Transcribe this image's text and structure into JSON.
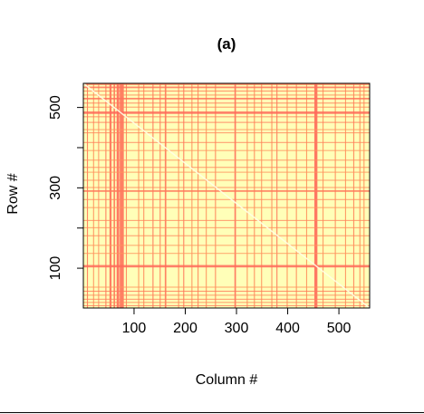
{
  "chart_data": {
    "type": "heatmap",
    "title": "(a)",
    "xlabel": "Column #",
    "ylabel": "Row #",
    "xlim": [
      1,
      560
    ],
    "ylim": [
      1,
      560
    ],
    "x_ticks": [
      100,
      200,
      300,
      400,
      500
    ],
    "y_ticks": [
      100,
      300,
      500
    ],
    "y_minor_ticks": [
      200,
      400
    ],
    "n_rows": 560,
    "n_cols": 560,
    "colors": {
      "low": "#ff6a5a",
      "mid": "#ffb060",
      "high": "#ffffb8",
      "diagonal": "#ffffe6"
    },
    "column_bands": [
      {
        "start": 8,
        "end": 10,
        "level": 0.1
      },
      {
        "start": 20,
        "end": 22,
        "level": 0.3
      },
      {
        "start": 30,
        "end": 31,
        "level": 0.2
      },
      {
        "start": 44,
        "end": 46,
        "level": 0.1
      },
      {
        "start": 52,
        "end": 56,
        "level": 0.05
      },
      {
        "start": 60,
        "end": 63,
        "level": 0.1
      },
      {
        "start": 66,
        "end": 71,
        "level": 0.0
      },
      {
        "start": 72,
        "end": 80,
        "level": 0.05
      },
      {
        "start": 84,
        "end": 86,
        "level": 0.2
      },
      {
        "start": 108,
        "end": 110,
        "level": 0.3
      },
      {
        "start": 118,
        "end": 120,
        "level": 0.25
      },
      {
        "start": 136,
        "end": 138,
        "level": 0.1
      },
      {
        "start": 150,
        "end": 152,
        "level": 0.15
      },
      {
        "start": 160,
        "end": 163,
        "level": 0.1
      },
      {
        "start": 186,
        "end": 188,
        "level": 0.3
      },
      {
        "start": 196,
        "end": 198,
        "level": 0.1
      },
      {
        "start": 212,
        "end": 214,
        "level": 0.3
      },
      {
        "start": 224,
        "end": 226,
        "level": 0.2
      },
      {
        "start": 240,
        "end": 242,
        "level": 0.3
      },
      {
        "start": 258,
        "end": 260,
        "level": 0.2
      },
      {
        "start": 296,
        "end": 299,
        "level": 0.05
      },
      {
        "start": 320,
        "end": 322,
        "level": 0.3
      },
      {
        "start": 334,
        "end": 336,
        "level": 0.25
      },
      {
        "start": 348,
        "end": 350,
        "level": 0.3
      },
      {
        "start": 368,
        "end": 370,
        "level": 0.25
      },
      {
        "start": 378,
        "end": 380,
        "level": 0.1
      },
      {
        "start": 398,
        "end": 400,
        "level": 0.3
      },
      {
        "start": 416,
        "end": 418,
        "level": 0.25
      },
      {
        "start": 436,
        "end": 438,
        "level": 0.3
      },
      {
        "start": 452,
        "end": 458,
        "level": 0.0
      },
      {
        "start": 468,
        "end": 470,
        "level": 0.3
      },
      {
        "start": 492,
        "end": 494,
        "level": 0.25
      },
      {
        "start": 512,
        "end": 514,
        "level": 0.3
      },
      {
        "start": 528,
        "end": 530,
        "level": 0.2
      },
      {
        "start": 540,
        "end": 542,
        "level": 0.25
      },
      {
        "start": 548,
        "end": 550,
        "level": 0.3
      }
    ],
    "row_bands": [
      {
        "start": 6,
        "end": 8,
        "level": 0.1
      },
      {
        "start": 14,
        "end": 16,
        "level": 0.2
      },
      {
        "start": 22,
        "end": 24,
        "level": 0.15
      },
      {
        "start": 32,
        "end": 34,
        "level": 0.2
      },
      {
        "start": 42,
        "end": 44,
        "level": 0.1
      },
      {
        "start": 52,
        "end": 54,
        "level": 0.3
      },
      {
        "start": 102,
        "end": 108,
        "level": 0.0
      },
      {
        "start": 136,
        "end": 138,
        "level": 0.3
      },
      {
        "start": 156,
        "end": 158,
        "level": 0.3
      },
      {
        "start": 180,
        "end": 182,
        "level": 0.2
      },
      {
        "start": 200,
        "end": 202,
        "level": 0.25
      },
      {
        "start": 218,
        "end": 220,
        "level": 0.2
      },
      {
        "start": 250,
        "end": 252,
        "level": 0.3
      },
      {
        "start": 270,
        "end": 272,
        "level": 0.2
      },
      {
        "start": 290,
        "end": 294,
        "level": 0.1
      },
      {
        "start": 300,
        "end": 302,
        "level": 0.2
      },
      {
        "start": 318,
        "end": 320,
        "level": 0.25
      },
      {
        "start": 338,
        "end": 340,
        "level": 0.3
      },
      {
        "start": 350,
        "end": 352,
        "level": 0.2
      },
      {
        "start": 368,
        "end": 370,
        "level": 0.25
      },
      {
        "start": 392,
        "end": 394,
        "level": 0.3
      },
      {
        "start": 412,
        "end": 414,
        "level": 0.15
      },
      {
        "start": 436,
        "end": 438,
        "level": 0.2
      },
      {
        "start": 444,
        "end": 446,
        "level": 0.3
      },
      {
        "start": 462,
        "end": 464,
        "level": 0.1
      },
      {
        "start": 476,
        "end": 478,
        "level": 0.15
      },
      {
        "start": 484,
        "end": 490,
        "level": 0.0
      },
      {
        "start": 500,
        "end": 502,
        "level": 0.2
      },
      {
        "start": 510,
        "end": 512,
        "level": 0.1
      },
      {
        "start": 520,
        "end": 524,
        "level": 0.05
      },
      {
        "start": 530,
        "end": 532,
        "level": 0.2
      },
      {
        "start": 540,
        "end": 542,
        "level": 0.15
      },
      {
        "start": 548,
        "end": 552,
        "level": 0.05
      },
      {
        "start": 556,
        "end": 560,
        "level": 0.1
      }
    ]
  }
}
